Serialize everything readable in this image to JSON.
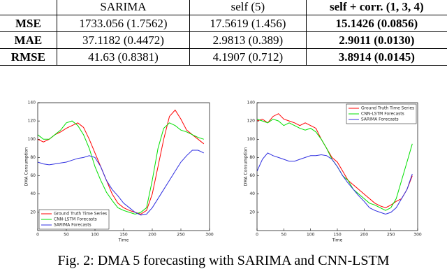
{
  "table": {
    "header": [
      null,
      "SARIMA",
      "self (5)",
      "self + corr. (1, 3, 4)"
    ],
    "rows": [
      [
        "MSE",
        "1733.056 (1.7562)",
        "17.5619 (1.456)",
        "15.1426 (0.0856)"
      ],
      [
        "MAE",
        "37.1182 (0.4472)",
        "2.9813 (0.389)",
        "2.9011 (0.0130)"
      ],
      [
        "RMSE",
        "41.63 (0.8381)",
        "4.1907 (0.712)",
        "3.8914 (0.0145)"
      ]
    ]
  },
  "chart_data": [
    {
      "type": "line",
      "xlabel": "Time",
      "ylabel": "DMA Consumption",
      "x": [
        0,
        10,
        20,
        30,
        40,
        50,
        60,
        70,
        80,
        90,
        100,
        110,
        120,
        130,
        140,
        150,
        160,
        170,
        180,
        190,
        200,
        210,
        220,
        230,
        240,
        250,
        260,
        270,
        280,
        290
      ],
      "xlim": [
        0,
        300
      ],
      "xticks": [
        0,
        50,
        100,
        150,
        200,
        250,
        300
      ],
      "ylim": [
        0,
        140
      ],
      "yticks": [
        20,
        40,
        60,
        80,
        100,
        120,
        140
      ],
      "legend": "lower left",
      "series": [
        {
          "name": "Ground Truth Time Series",
          "color": "#ff0000",
          "values": [
            100,
            97,
            100,
            105,
            108,
            112,
            115,
            118,
            113,
            100,
            85,
            70,
            55,
            40,
            30,
            25,
            22,
            20,
            18,
            22,
            40,
            70,
            100,
            125,
            132,
            122,
            110,
            105,
            100,
            95
          ]
        },
        {
          "name": "CNN-LSTM Forecasts",
          "color": "#00e000",
          "values": [
            105,
            100,
            100,
            105,
            110,
            118,
            120,
            115,
            105,
            90,
            70,
            55,
            42,
            33,
            25,
            22,
            20,
            18,
            20,
            25,
            55,
            90,
            112,
            118,
            115,
            110,
            108,
            105,
            102,
            100
          ]
        },
        {
          "name": "SARIMA Forecasts",
          "color": "#3030e0",
          "values": [
            75,
            73,
            72,
            73,
            74,
            75,
            77,
            79,
            80,
            82,
            80,
            70,
            55,
            45,
            38,
            30,
            25,
            20,
            17,
            18,
            25,
            35,
            45,
            55,
            65,
            75,
            82,
            88,
            88,
            85
          ]
        }
      ]
    },
    {
      "type": "line",
      "xlabel": "Time",
      "ylabel": "DMA Consumption",
      "x": [
        0,
        10,
        20,
        30,
        40,
        50,
        60,
        70,
        80,
        90,
        100,
        110,
        120,
        130,
        140,
        150,
        160,
        170,
        180,
        190,
        200,
        210,
        220,
        230,
        240,
        250,
        260,
        270,
        280,
        290
      ],
      "xlim": [
        0,
        300
      ],
      "xticks": [
        0,
        50,
        100,
        150,
        200,
        250,
        300
      ],
      "ylim": [
        0,
        140
      ],
      "yticks": [
        20,
        40,
        60,
        80,
        100,
        120,
        140
      ],
      "legend": "upper right",
      "series": [
        {
          "name": "Ground Truth Time Series",
          "color": "#ff0000",
          "values": [
            120,
            122,
            118,
            125,
            128,
            122,
            120,
            118,
            115,
            118,
            115,
            112,
            100,
            90,
            80,
            75,
            65,
            55,
            50,
            45,
            40,
            35,
            30,
            27,
            25,
            28,
            32,
            35,
            45,
            60
          ]
        },
        {
          "name": "CNN-LSTM Forecasts",
          "color": "#00e000",
          "values": [
            122,
            120,
            118,
            122,
            120,
            115,
            118,
            115,
            112,
            110,
            112,
            108,
            100,
            90,
            78,
            70,
            60,
            55,
            45,
            40,
            35,
            30,
            28,
            25,
            22,
            25,
            35,
            55,
            75,
            95
          ]
        },
        {
          "name": "SARIMA Forecasts",
          "color": "#3030e0",
          "values": [
            65,
            78,
            85,
            82,
            80,
            78,
            76,
            76,
            78,
            80,
            82,
            82,
            83,
            82,
            78,
            70,
            60,
            52,
            45,
            38,
            32,
            25,
            22,
            20,
            18,
            20,
            25,
            35,
            45,
            62
          ]
        }
      ]
    }
  ],
  "caption": "Fig. 2: DMA 5 forecasting with SARIMA and CNN-LSTM"
}
